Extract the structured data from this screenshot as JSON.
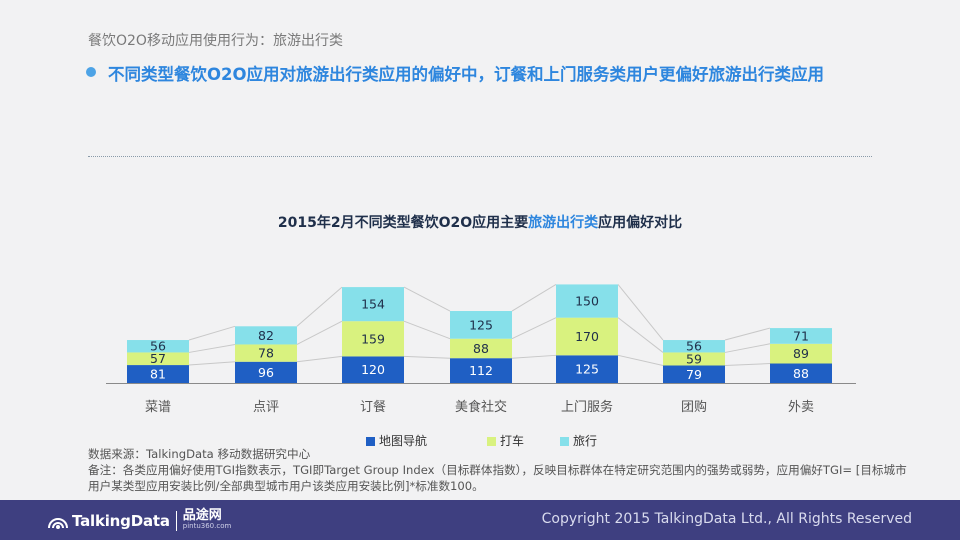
{
  "slide": {
    "breadcrumb": "餐饮O2O移动应用使用行为：旅游出行类",
    "headline": "不同类型餐饮O2O应用对旅游出行类应用的偏好中，订餐和上门服务类用户更偏好旅游出行类应用",
    "chart_title_pre": "2015年2月不同类型餐饮O2O应用主要",
    "chart_title_highlight": "旅游出行类",
    "chart_title_post": "应用偏好对比",
    "source_note": "数据来源：TalkingData 移动数据研究中心",
    "remark_note": "备注：各类应用偏好使用TGI指数表示，TGI即Target Group Index（目标群体指数），反映目标群体在特定研究范围内的强势或弱势，应用偏好TGI= [目标城市用户某类型应用安装比例/全部典型城市用户该类应用安装比例]*标准数100。",
    "logo_text": "TalkingData",
    "logo2_text": "品途网",
    "logo2_sub": "pintu360.com",
    "copyright": "Copyright 2015 TalkingData Ltd., All Rights Reserved"
  },
  "colors": {
    "nav": "#1f5fc4",
    "car": "#d9f27f",
    "travel": "#86e0ea",
    "axis": "#8a8a8a",
    "connector": "#c8c8c8",
    "label_dark": "#1f2f4a",
    "label_light": "#ffffff",
    "category": "#555555"
  },
  "chart_data": {
    "type": "bar",
    "stacked": true,
    "title": "2015年2月不同类型餐饮O2O应用主要旅游出行类应用偏好对比",
    "categories": [
      "菜谱",
      "点评",
      "订餐",
      "美食社交",
      "上门服务",
      "团购",
      "外卖"
    ],
    "series": [
      {
        "name": "地图导航",
        "values": [
          81,
          96,
          120,
          112,
          125,
          79,
          88
        ]
      },
      {
        "name": "打车",
        "values": [
          57,
          78,
          159,
          88,
          170,
          59,
          89
        ]
      },
      {
        "name": "旅行",
        "values": [
          56,
          82,
          154,
          125,
          150,
          56,
          71
        ]
      }
    ],
    "xlabel": "",
    "ylabel": "",
    "legend_position": "bottom",
    "grid": false
  }
}
